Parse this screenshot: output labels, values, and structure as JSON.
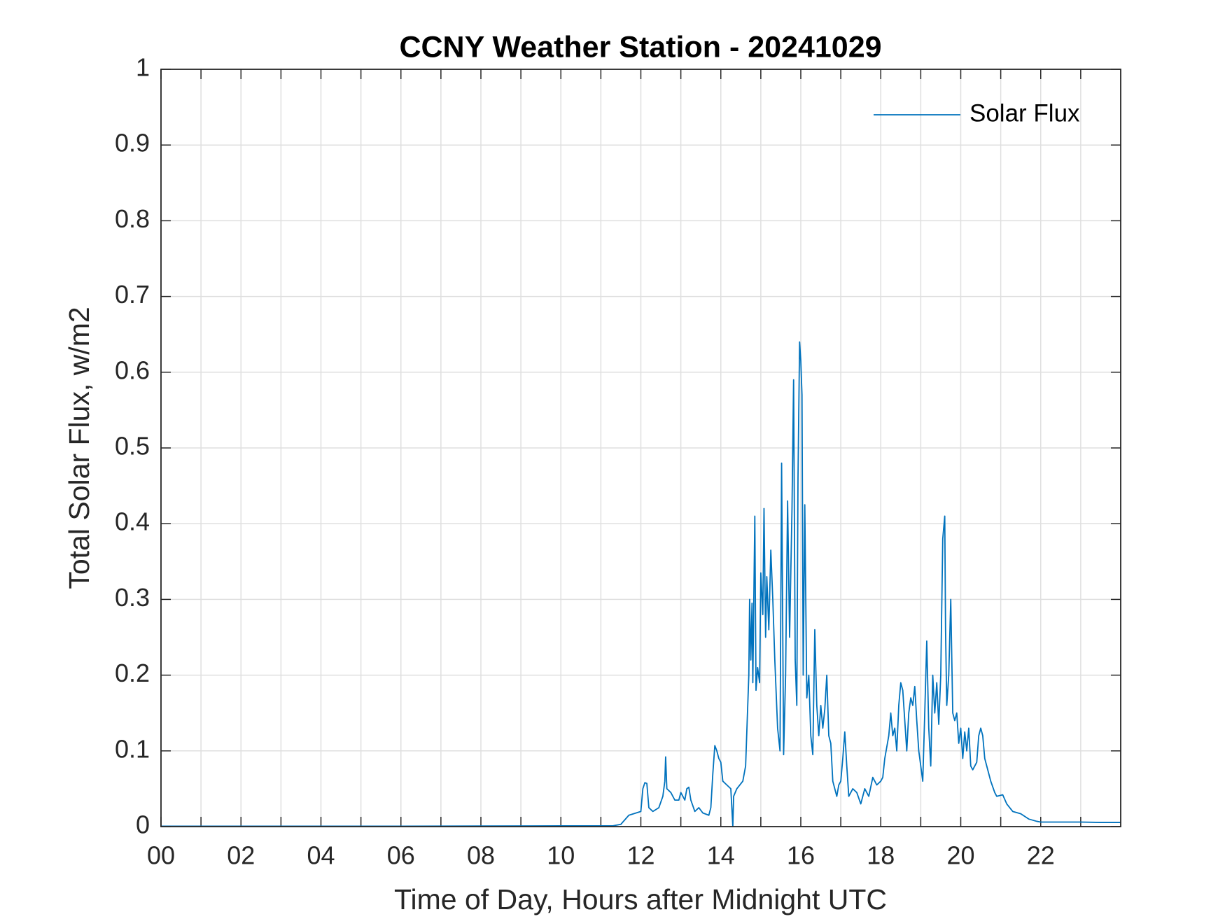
{
  "chart_data": {
    "type": "line",
    "title": "CCNY Weather Station - 20241029",
    "xlabel": "Time of Day, Hours after Midnight UTC",
    "ylabel": "Total Solar Flux, w/m2",
    "xlim": [
      0,
      24
    ],
    "ylim": [
      0,
      1
    ],
    "xticks": [
      {
        "value": 0,
        "label": "00"
      },
      {
        "value": 2,
        "label": "02"
      },
      {
        "value": 4,
        "label": "04"
      },
      {
        "value": 6,
        "label": "06"
      },
      {
        "value": 8,
        "label": "08"
      },
      {
        "value": 10,
        "label": "10"
      },
      {
        "value": 12,
        "label": "12"
      },
      {
        "value": 14,
        "label": "14"
      },
      {
        "value": 16,
        "label": "16"
      },
      {
        "value": 18,
        "label": "18"
      },
      {
        "value": 20,
        "label": "20"
      },
      {
        "value": 22,
        "label": "22"
      }
    ],
    "xminorgrid": [
      1,
      3,
      5,
      7,
      9,
      11,
      13,
      15,
      17,
      19,
      21,
      23
    ],
    "yticks": [
      0,
      0.1,
      0.2,
      0.3,
      0.4,
      0.5,
      0.6,
      0.7,
      0.8,
      0.9,
      1
    ],
    "grid": true,
    "legend": "northeast",
    "series": [
      {
        "name": "Solar Flux",
        "color": "#0072BD",
        "x": [
          0,
          2,
          4,
          6,
          8,
          10,
          11,
          11.3,
          11.5,
          11.7,
          12.0,
          12.05,
          12.1,
          12.15,
          12.2,
          12.3,
          12.45,
          12.55,
          12.6,
          12.62,
          12.65,
          12.75,
          12.85,
          12.95,
          13.0,
          13.05,
          13.1,
          13.15,
          13.2,
          13.25,
          13.35,
          13.45,
          13.55,
          13.7,
          13.75,
          13.8,
          13.85,
          13.9,
          13.95,
          14.0,
          14.05,
          14.15,
          14.25,
          14.3,
          14.32,
          14.4,
          14.55,
          14.62,
          14.66,
          14.7,
          14.72,
          14.75,
          14.78,
          14.8,
          14.85,
          14.88,
          14.92,
          14.97,
          15.0,
          15.05,
          15.08,
          15.12,
          15.15,
          15.2,
          15.25,
          15.3,
          15.35,
          15.42,
          15.48,
          15.52,
          15.57,
          15.62,
          15.67,
          15.72,
          15.78,
          15.82,
          15.86,
          15.9,
          15.93,
          15.97,
          16.0,
          16.03,
          16.06,
          16.1,
          16.15,
          16.2,
          16.25,
          16.3,
          16.35,
          16.4,
          16.45,
          16.5,
          16.55,
          16.6,
          16.65,
          16.7,
          16.75,
          16.8,
          16.9,
          16.95,
          17.0,
          17.05,
          17.1,
          17.15,
          17.2,
          17.3,
          17.4,
          17.5,
          17.6,
          17.7,
          17.8,
          17.9,
          18.0,
          18.05,
          18.1,
          18.2,
          18.25,
          18.3,
          18.35,
          18.4,
          18.45,
          18.5,
          18.55,
          18.6,
          18.65,
          18.7,
          18.75,
          18.8,
          18.85,
          18.9,
          18.95,
          19.0,
          19.05,
          19.1,
          19.15,
          19.2,
          19.25,
          19.3,
          19.35,
          19.4,
          19.45,
          19.5,
          19.55,
          19.6,
          19.62,
          19.65,
          19.7,
          19.75,
          19.8,
          19.85,
          19.9,
          19.95,
          20.0,
          20.05,
          20.1,
          20.15,
          20.2,
          20.25,
          20.3,
          20.4,
          20.45,
          20.5,
          20.55,
          20.6,
          20.7,
          20.75,
          20.85,
          20.9,
          21.05,
          21.15,
          21.3,
          21.5,
          21.7,
          21.9,
          22.0,
          22.5,
          23.0,
          23.5,
          23.99
        ],
        "values": [
          0.0005,
          0.0005,
          0.0005,
          0.0005,
          0.0008,
          0.001,
          0.001,
          0.001,
          0.003,
          0.015,
          0.02,
          0.05,
          0.058,
          0.057,
          0.025,
          0.02,
          0.025,
          0.04,
          0.06,
          0.092,
          0.05,
          0.045,
          0.035,
          0.035,
          0.045,
          0.04,
          0.035,
          0.05,
          0.052,
          0.035,
          0.02,
          0.025,
          0.018,
          0.015,
          0.025,
          0.07,
          0.107,
          0.1,
          0.09,
          0.085,
          0.06,
          0.055,
          0.05,
          0,
          0.04,
          0.05,
          0.06,
          0.08,
          0.14,
          0.2,
          0.3,
          0.22,
          0.295,
          0.19,
          0.41,
          0.18,
          0.21,
          0.19,
          0.335,
          0.28,
          0.42,
          0.25,
          0.33,
          0.26,
          0.365,
          0.3,
          0.22,
          0.13,
          0.1,
          0.48,
          0.095,
          0.2,
          0.43,
          0.25,
          0.42,
          0.59,
          0.22,
          0.16,
          0.46,
          0.64,
          0.615,
          0.57,
          0.2,
          0.425,
          0.17,
          0.2,
          0.12,
          0.095,
          0.26,
          0.16,
          0.12,
          0.16,
          0.13,
          0.155,
          0.2,
          0.12,
          0.11,
          0.06,
          0.04,
          0.055,
          0.06,
          0.09,
          0.125,
          0.08,
          0.04,
          0.05,
          0.045,
          0.03,
          0.05,
          0.04,
          0.065,
          0.055,
          0.06,
          0.065,
          0.09,
          0.12,
          0.15,
          0.12,
          0.13,
          0.1,
          0.16,
          0.19,
          0.18,
          0.14,
          0.1,
          0.15,
          0.17,
          0.16,
          0.185,
          0.14,
          0.1,
          0.08,
          0.06,
          0.15,
          0.245,
          0.13,
          0.08,
          0.2,
          0.15,
          0.19,
          0.135,
          0.2,
          0.38,
          0.41,
          0.26,
          0.16,
          0.2,
          0.3,
          0.15,
          0.14,
          0.15,
          0.11,
          0.13,
          0.09,
          0.125,
          0.1,
          0.13,
          0.08,
          0.075,
          0.085,
          0.12,
          0.13,
          0.12,
          0.09,
          0.07,
          0.06,
          0.045,
          0.04,
          0.042,
          0.03,
          0.02,
          0.017,
          0.01,
          0.007,
          0.006,
          0.006,
          0.006,
          0.0055,
          0.0055
        ]
      }
    ]
  }
}
